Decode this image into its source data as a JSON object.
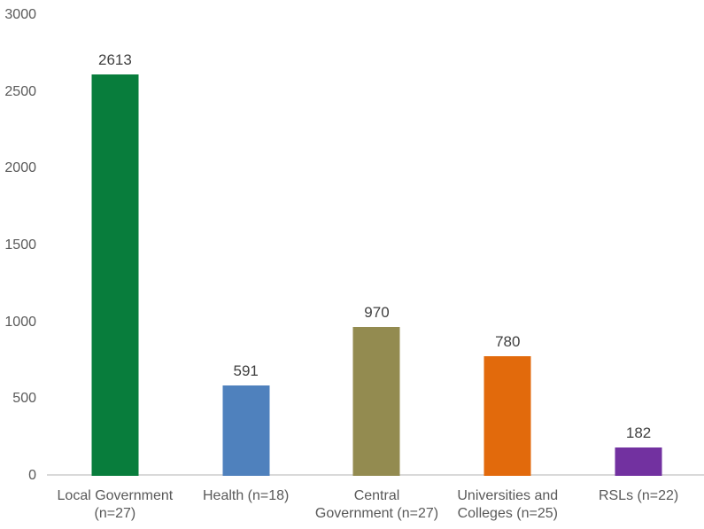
{
  "chart_data": {
    "type": "bar",
    "title": "",
    "xlabel": "",
    "ylabel": "",
    "categories": [
      "Local Government (n=27)",
      "Health (n=18)",
      "Central Government (n=27)",
      "Universities and Colleges (n=25)",
      "RSLs (n=22)"
    ],
    "category_lines": [
      [
        "Local Government",
        "(n=27)"
      ],
      [
        "Health (n=18)"
      ],
      [
        "Central",
        "Government (n=27)"
      ],
      [
        "Universities and",
        "Colleges (n=25)"
      ],
      [
        "RSLs (n=22)"
      ]
    ],
    "values": [
      2613,
      591,
      970,
      780,
      182
    ],
    "data_labels": [
      "2613",
      "591",
      "970",
      "780",
      "182"
    ],
    "bar_colors": [
      "#087d3c",
      "#4f81bd",
      "#938b50",
      "#e26a0c",
      "#7231a0"
    ],
    "ylim": [
      0,
      3000
    ],
    "yticks": [
      0,
      500,
      1000,
      1500,
      2000,
      2500,
      3000
    ],
    "grid": false,
    "legend": "none"
  },
  "style_colors": {
    "tick_label": "#595959",
    "category_label": "#595959",
    "value_label": "#404040",
    "axis_line": "#d9d9d9",
    "background": "#ffffff"
  }
}
